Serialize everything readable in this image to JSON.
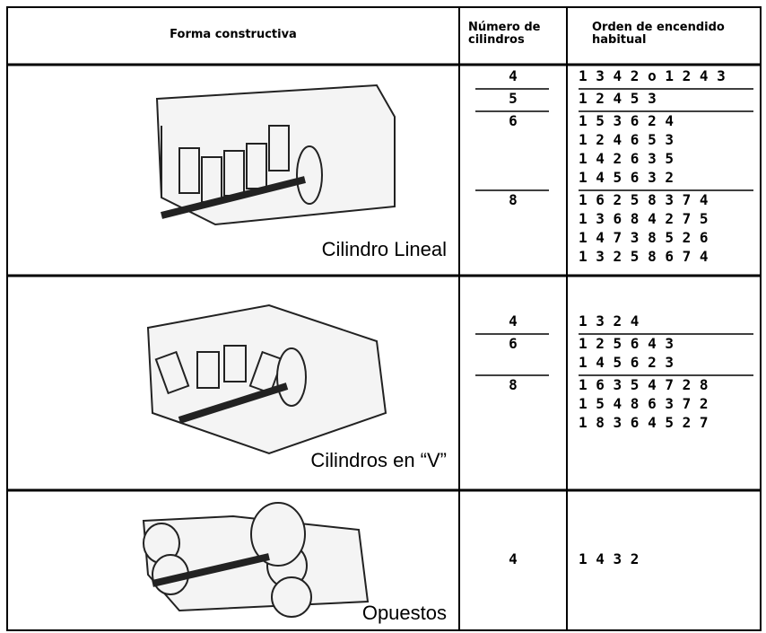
{
  "header": {
    "columns": [
      [
        "Forma constructiva"
      ],
      [
        "Número de",
        "cilindros"
      ],
      [
        "Orden de encendido",
        "habitual"
      ]
    ]
  },
  "rows": [
    {
      "label": "Cilindro Lineal",
      "groups": [
        {
          "cylinders": "4",
          "orders": [
            "1 3 4 2 o 1 2 4 3"
          ]
        },
        {
          "cylinders": "5",
          "orders": [
            "1 2 4 5 3"
          ]
        },
        {
          "cylinders": "6",
          "orders": [
            "1 5 3 6 2 4",
            "1 2 4 6 5 3",
            "1 4 2 6 3 5",
            "1 4 5 6 3 2"
          ]
        },
        {
          "cylinders": "8",
          "orders": [
            "1 6 2 5 8 3 7 4",
            "1 3 6 8 4 2 7 5",
            "1 4 7 3 8 5 2 6",
            "1 3 2 5 8 6 7 4"
          ]
        }
      ]
    },
    {
      "label": "Cilindros en “V”",
      "groups": [
        {
          "cylinders": "4",
          "orders": [
            "1 3 2 4"
          ]
        },
        {
          "cylinders": "6",
          "orders": [
            "1 2 5 6 4 3",
            "1 4 5 6 2 3"
          ]
        },
        {
          "cylinders": "8",
          "orders": [
            "1 6 3 5 4 7 2 8",
            "1 5 4 8 6 3 7 2",
            "1 8 3 6 4 5 2 7"
          ]
        }
      ]
    },
    {
      "label": "Opuestos",
      "groups": [
        {
          "cylinders": "4",
          "orders": [
            "1 4 3 2"
          ]
        }
      ]
    }
  ]
}
